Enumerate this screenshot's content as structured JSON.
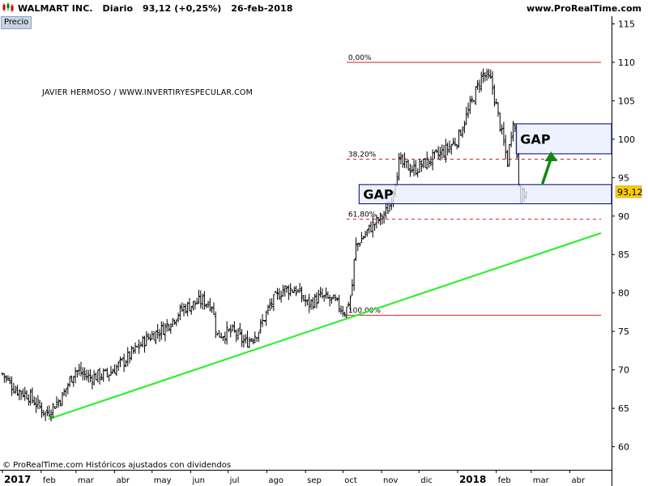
{
  "header": {
    "symbol": "WALMART INC.",
    "period": "Diario",
    "last": "93,12 (+0,25%)",
    "date": "26-feb-2018",
    "site": "www.ProRealTime.com"
  },
  "panel_label": "Precio",
  "author": "JAVIER HERMOSO / WWW.INVERTIRYESPECULAR.COM",
  "footer": "© ProRealTime.com  Históricos ajustados con dividendos",
  "colors": {
    "candle": "#000000",
    "fib_line": "#cc2222",
    "trendline": "#33ee33",
    "gap_fill": "#e8eeff",
    "gap_border": "#000080",
    "arrow": "#118811",
    "price_tag": "#ffcc00"
  },
  "chart_data": {
    "type": "candlestick",
    "instrument": "WALMART INC.",
    "interval": "Diario",
    "last_price": 93.12,
    "last_price_label": "93,12",
    "ylim": [
      57,
      116
    ],
    "y_ticks": [
      60,
      65,
      70,
      75,
      80,
      85,
      90,
      95,
      100,
      105,
      110,
      115
    ],
    "x_ticks": [
      {
        "label": "2017",
        "day": 0,
        "bold": true
      },
      {
        "label": "feb",
        "day": 31
      },
      {
        "label": "mar",
        "day": 59
      },
      {
        "label": "abr",
        "day": 90
      },
      {
        "label": "may",
        "day": 120
      },
      {
        "label": "jun",
        "day": 151
      },
      {
        "label": "jul",
        "day": 181
      },
      {
        "label": "ago",
        "day": 212
      },
      {
        "label": "sep",
        "day": 243
      },
      {
        "label": "oct",
        "day": 273
      },
      {
        "label": "nov",
        "day": 304
      },
      {
        "label": "dic",
        "day": 334
      },
      {
        "label": "2018",
        "day": 365,
        "bold": true
      },
      {
        "label": "feb",
        "day": 396
      },
      {
        "label": "mar",
        "day": 424
      },
      {
        "label": "abr",
        "day": 455
      }
    ],
    "x_range_days": [
      0,
      480
    ],
    "price_path": [
      {
        "day": 0,
        "price": 69.5
      },
      {
        "day": 10,
        "price": 67.5
      },
      {
        "day": 20,
        "price": 66.8
      },
      {
        "day": 35,
        "price": 64.3
      },
      {
        "day": 48,
        "price": 66.5
      },
      {
        "day": 58,
        "price": 70.0
      },
      {
        "day": 70,
        "price": 69.0
      },
      {
        "day": 85,
        "price": 69.5
      },
      {
        "day": 100,
        "price": 71.5
      },
      {
        "day": 115,
        "price": 74.0
      },
      {
        "day": 130,
        "price": 75.5
      },
      {
        "day": 145,
        "price": 78.0
      },
      {
        "day": 160,
        "price": 79.0
      },
      {
        "day": 168,
        "price": 78.5
      },
      {
        "day": 172,
        "price": 74.5
      },
      {
        "day": 185,
        "price": 75.0
      },
      {
        "day": 195,
        "price": 73.5
      },
      {
        "day": 205,
        "price": 75.0
      },
      {
        "day": 215,
        "price": 78.5
      },
      {
        "day": 225,
        "price": 80.5
      },
      {
        "day": 235,
        "price": 80.5
      },
      {
        "day": 245,
        "price": 78.5
      },
      {
        "day": 255,
        "price": 79.5
      },
      {
        "day": 265,
        "price": 79.0
      },
      {
        "day": 275,
        "price": 77.5
      },
      {
        "day": 280,
        "price": 80.0
      },
      {
        "day": 283,
        "price": 86.0
      },
      {
        "day": 295,
        "price": 88.5
      },
      {
        "day": 305,
        "price": 90.0
      },
      {
        "day": 310,
        "price": 91.0
      },
      {
        "day": 318,
        "price": 97.0
      },
      {
        "day": 330,
        "price": 96.0
      },
      {
        "day": 345,
        "price": 97.5
      },
      {
        "day": 355,
        "price": 98.5
      },
      {
        "day": 365,
        "price": 100.0
      },
      {
        "day": 372,
        "price": 103.0
      },
      {
        "day": 385,
        "price": 108.5
      },
      {
        "day": 392,
        "price": 107.5
      },
      {
        "day": 400,
        "price": 101.0
      },
      {
        "day": 405,
        "price": 97.0
      },
      {
        "day": 410,
        "price": 103.5
      },
      {
        "day": 415,
        "price": 92.5
      },
      {
        "day": 421,
        "price": 93.12
      }
    ],
    "fibonacci": {
      "levels": [
        {
          "label": "0,00%",
          "price": 110.0,
          "style": "solid"
        },
        {
          "label": "38,20%",
          "price": 97.4,
          "style": "dashed"
        },
        {
          "label": "61,80%",
          "price": 89.6,
          "style": "dashed"
        },
        {
          "label": "100,00%",
          "price": 77.1,
          "style": "solid"
        }
      ],
      "day_range": [
        276,
        480
      ]
    },
    "trendline": {
      "start": {
        "day": 37,
        "price": 63.6
      },
      "end": {
        "day": 480,
        "price": 87.8
      }
    },
    "gaps": [
      {
        "label": "GAP",
        "price_low": 91.6,
        "price_high": 94.1,
        "day_start": 286,
        "day_end": 490
      },
      {
        "label": "GAP",
        "price_low": 98.1,
        "price_high": 102.0,
        "day_start": 412,
        "day_end": 490
      }
    ],
    "arrow": {
      "from": {
        "day": 433,
        "price": 94.2
      },
      "to": {
        "day": 440,
        "price": 98.4
      }
    }
  }
}
